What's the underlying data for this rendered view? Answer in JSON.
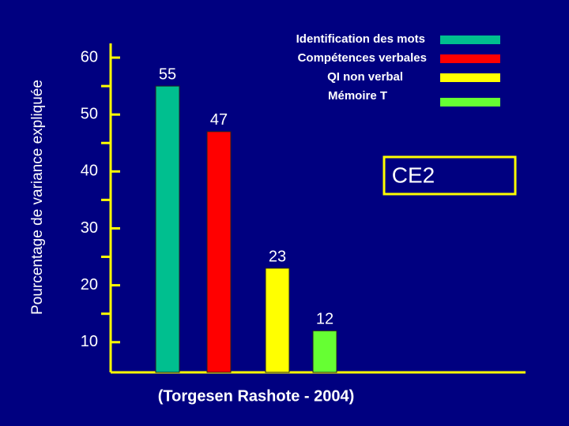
{
  "chart_data": {
    "type": "bar",
    "ylabel": "Pourcentage de variance expliquée",
    "annotation": "CE2",
    "source": "(Torgesen Rashote - 2004)",
    "series": [
      {
        "name": "Identification des mots",
        "color": "#00bf8f",
        "values": [
          55
        ]
      },
      {
        "name": "Compétences verbales",
        "color": "#ff0000",
        "values": [
          47
        ]
      },
      {
        "name": "QI non verbal",
        "color": "#ffff00",
        "values": [
          23
        ]
      },
      {
        "name": "Mémoire T",
        "color": "#66ff33",
        "values": [
          12
        ]
      }
    ],
    "ylim": [
      4.7,
      62.5
    ],
    "yticks": [
      10,
      20,
      30,
      40,
      50,
      60
    ],
    "minor_yticks": [
      15,
      25,
      35,
      45,
      55
    ],
    "axis_color": "#ffff00"
  }
}
